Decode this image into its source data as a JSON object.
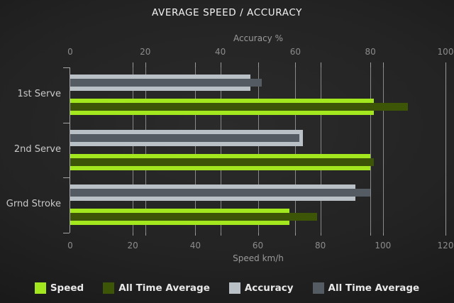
{
  "title": "AVERAGE SPEED / ACCURACY",
  "chart_data": {
    "type": "bar",
    "orientation": "horizontal",
    "title": "AVERAGE SPEED / ACCURACY",
    "categories": [
      "1st Serve",
      "2nd Serve",
      "Grnd Stroke"
    ],
    "series": [
      {
        "name": "Speed",
        "axis": "speed",
        "color": "#a3e81f",
        "values": [
          97,
          96,
          70
        ]
      },
      {
        "name": "All Time Average",
        "axis": "speed",
        "color": "#3d5507",
        "values": [
          108,
          97,
          79
        ]
      },
      {
        "name": "Accuracy",
        "axis": "accuracy",
        "color": "#b9c0c6",
        "values": [
          48,
          62,
          76
        ]
      },
      {
        "name": "All Time Average",
        "axis": "accuracy",
        "color": "#555b63",
        "values": [
          51,
          61,
          80
        ]
      }
    ],
    "axes": {
      "top": {
        "label": "Accuracy %",
        "ticks": [
          0,
          20,
          40,
          60,
          80,
          100
        ],
        "min": 0,
        "max": 100
      },
      "bottom": {
        "label": "Speed km/h",
        "ticks": [
          0,
          20,
          40,
          60,
          80,
          100,
          120
        ],
        "min": 0,
        "max": 120
      }
    },
    "grid": true,
    "legend_position": "bottom"
  },
  "palette": {
    "background_center": "#2b2b2b",
    "background_edge": "#101010",
    "gridline": "#9a9a9a",
    "title_text": "#f2f2f2",
    "axis_text": "#8c8c8c",
    "category_text": "#c9c9c9",
    "legend_text": "#e8e8e8"
  }
}
